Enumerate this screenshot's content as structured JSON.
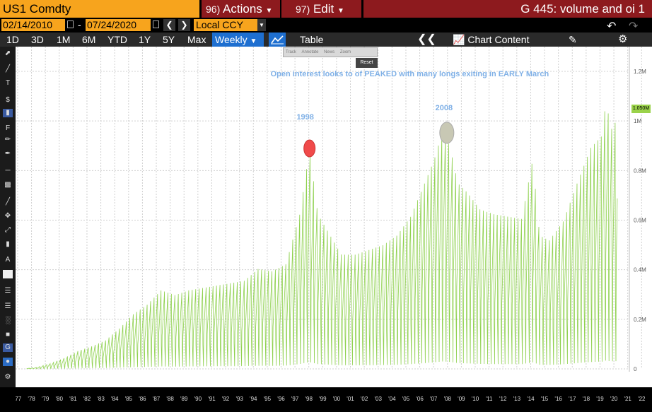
{
  "header": {
    "ticker": "US1 Comdty",
    "actions_num": "96)",
    "actions_label": "Actions",
    "edit_num": "97)",
    "edit_label": "Edit",
    "chart_title": "G 445: volume and oi 1"
  },
  "date_range": {
    "start": "02/14/2010",
    "separator": "-",
    "end": "07/24/2020",
    "currency": "Local CCY"
  },
  "periods": [
    "1D",
    "3D",
    "1M",
    "6M",
    "YTD",
    "1Y",
    "5Y",
    "Max"
  ],
  "toolbar_row": {
    "frequency": "Weekly",
    "table_label": "Table",
    "chart_content_label": "Chart Content"
  },
  "mini_tools": {
    "track": "Track",
    "annotate": "Annotate",
    "news": "News",
    "zoom": "Zoom",
    "reset": "Reset"
  },
  "colors": {
    "series": "#8fd14f",
    "header_orange": "#f7a41d",
    "header_red": "#8d1a1e",
    "active_blue": "#1e6fd0",
    "marker_red": "#f04a4a",
    "marker_grey": "#c8c8b4",
    "annotation_blue": "#7fb0e6"
  },
  "chart_data": {
    "type": "line",
    "x_start": 1977.0,
    "x_end": 2022.9,
    "x_ticks": [
      "'77",
      "'78",
      "'79",
      "'80",
      "'81",
      "'82",
      "'83",
      "'84",
      "'85",
      "'86",
      "'87",
      "'88",
      "'89",
      "'90",
      "'91",
      "'92",
      "'93",
      "'94",
      "'95",
      "'96",
      "'97",
      "'98",
      "'99",
      "'00",
      "'01",
      "'02",
      "'03",
      "'04",
      "'05",
      "'06",
      "'07",
      "'08",
      "'09",
      "'10",
      "'11",
      "'12",
      "'13",
      "'14",
      "'15",
      "'16",
      "'17",
      "'18",
      "'19",
      "'20",
      "'21",
      "'22"
    ],
    "y_ticks": [
      "0",
      "0.2M",
      "0.4M",
      "0.6M",
      "0.8M",
      "1M",
      "1.2M"
    ],
    "ylim": [
      0,
      1200000
    ],
    "last_value_label": "1.050M",
    "series": [
      {
        "envelope": [
          [
            1977.8,
            2000
          ],
          [
            1978.5,
            6000
          ],
          [
            1979.5,
            22000
          ],
          [
            1980.5,
            45000
          ],
          [
            1981.5,
            75000
          ],
          [
            1982.5,
            95000
          ],
          [
            1983.5,
            120000
          ],
          [
            1984.5,
            170000
          ],
          [
            1985.5,
            230000
          ],
          [
            1986.5,
            270000
          ],
          [
            1987.5,
            330000
          ],
          [
            1988.5,
            310000
          ],
          [
            1989.5,
            330000
          ],
          [
            1990.5,
            340000
          ],
          [
            1991.5,
            350000
          ],
          [
            1992.5,
            360000
          ],
          [
            1993.5,
            370000
          ],
          [
            1994.5,
            420000
          ],
          [
            1995.5,
            410000
          ],
          [
            1996.5,
            440000
          ],
          [
            1997.5,
            650000
          ],
          [
            1998.2,
            920000
          ],
          [
            1998.8,
            650000
          ],
          [
            1999.5,
            580000
          ],
          [
            2000.5,
            480000
          ],
          [
            2001.5,
            480000
          ],
          [
            2002.5,
            500000
          ],
          [
            2003.5,
            520000
          ],
          [
            2004.5,
            560000
          ],
          [
            2005.5,
            640000
          ],
          [
            2006.5,
            780000
          ],
          [
            2007.2,
            880000
          ],
          [
            2007.8,
            1000000
          ],
          [
            2008.3,
            940000
          ],
          [
            2008.9,
            780000
          ],
          [
            2009.6,
            740000
          ],
          [
            2010.5,
            670000
          ],
          [
            2011.5,
            650000
          ],
          [
            2012.5,
            640000
          ],
          [
            2013.5,
            630000
          ],
          [
            2014.3,
            880000
          ],
          [
            2014.8,
            560000
          ],
          [
            2015.5,
            540000
          ],
          [
            2016.5,
            620000
          ],
          [
            2017.5,
            780000
          ],
          [
            2018.5,
            930000
          ],
          [
            2019.3,
            980000
          ],
          [
            2019.6,
            1140000
          ],
          [
            2019.9,
            1000000
          ],
          [
            2020.4,
            1050000
          ]
        ]
      }
    ],
    "annotations": [
      {
        "text": "1998",
        "x": 1998.2,
        "y": 955000,
        "marker_color": "red"
      },
      {
        "text": "Open interest looks to of PEAKED with many longs exiting in EARLY March",
        "x": 2009.0,
        "y": 1175000
      },
      {
        "text": "2008",
        "x": 2008.0,
        "y": 1055000,
        "marker_color": "grey"
      }
    ],
    "grid": true
  }
}
